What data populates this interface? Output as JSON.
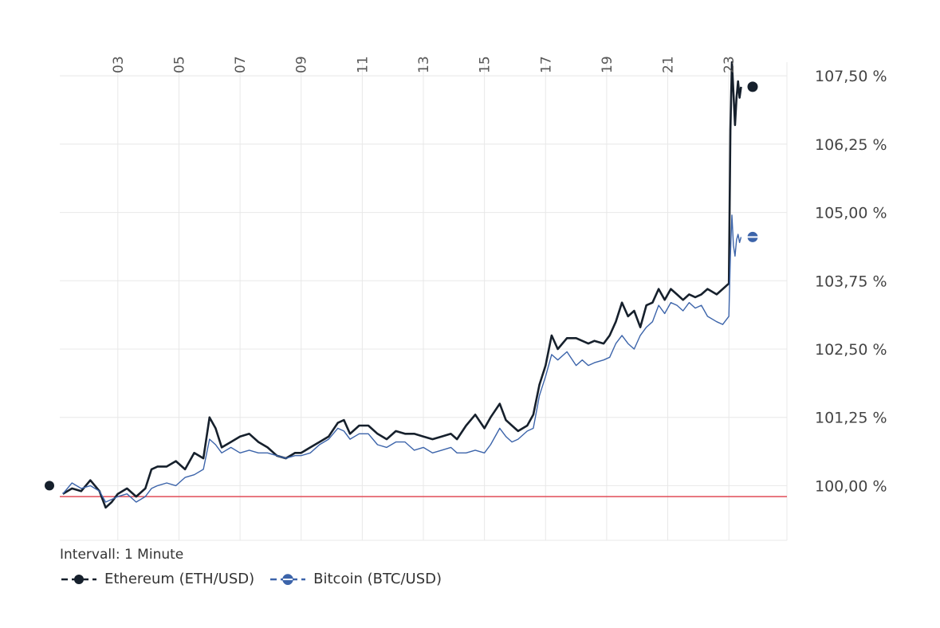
{
  "chart_data": {
    "type": "line",
    "interval_label": "Intervall: 1 Minute",
    "x_ticks": [
      "03",
      "05",
      "07",
      "09",
      "11",
      "13",
      "15",
      "17",
      "19",
      "21",
      "23"
    ],
    "x_tick_values": [
      3,
      5,
      7,
      9,
      11,
      13,
      15,
      17,
      19,
      21,
      23
    ],
    "xlim": [
      1.1,
      24.9
    ],
    "y_ticks": [
      "100,00 %",
      "101,25 %",
      "102,50 %",
      "103,75 %",
      "105,00 %",
      "106,25 %",
      "107,50 %"
    ],
    "y_tick_values": [
      100.0,
      101.25,
      102.5,
      103.75,
      105.0,
      106.25,
      107.5
    ],
    "ylim": [
      99.0,
      107.75
    ],
    "baseline": 99.8,
    "baseline_color": "#e04c58",
    "grid": true,
    "legend_position": "bottom-left",
    "series": [
      {
        "name": "Ethereum (ETH/USD)",
        "color": "#16202c",
        "marker": "filled-circle",
        "x": [
          1.2,
          1.5,
          1.8,
          2.1,
          2.4,
          2.6,
          2.8,
          3.0,
          3.3,
          3.6,
          3.9,
          4.1,
          4.3,
          4.6,
          4.9,
          5.2,
          5.5,
          5.8,
          6.0,
          6.2,
          6.4,
          6.7,
          7.0,
          7.3,
          7.6,
          7.9,
          8.2,
          8.5,
          8.8,
          9.0,
          9.3,
          9.6,
          9.9,
          10.2,
          10.4,
          10.6,
          10.9,
          11.2,
          11.5,
          11.8,
          12.1,
          12.4,
          12.7,
          13.0,
          13.3,
          13.6,
          13.9,
          14.1,
          14.4,
          14.7,
          15.0,
          15.2,
          15.5,
          15.7,
          15.9,
          16.1,
          16.4,
          16.6,
          16.8,
          17.0,
          17.2,
          17.4,
          17.7,
          18.0,
          18.2,
          18.4,
          18.6,
          18.9,
          19.1,
          19.3,
          19.5,
          19.7,
          19.9,
          20.1,
          20.3,
          20.5,
          20.7,
          20.9,
          21.1,
          21.3,
          21.5,
          21.7,
          21.9,
          22.1,
          22.3,
          22.6,
          22.8,
          23.0,
          23.05,
          23.1,
          23.15,
          23.2,
          23.25,
          23.3,
          23.35,
          23.4
        ],
        "values": [
          99.85,
          99.95,
          99.9,
          100.1,
          99.9,
          99.6,
          99.7,
          99.85,
          99.95,
          99.8,
          99.95,
          100.3,
          100.35,
          100.35,
          100.45,
          100.3,
          100.6,
          100.5,
          101.25,
          101.05,
          100.7,
          100.8,
          100.9,
          100.95,
          100.8,
          100.7,
          100.55,
          100.5,
          100.6,
          100.6,
          100.7,
          100.8,
          100.9,
          101.15,
          101.2,
          100.95,
          101.1,
          101.1,
          100.95,
          100.85,
          101.0,
          100.95,
          100.95,
          100.9,
          100.85,
          100.9,
          100.95,
          100.85,
          101.1,
          101.3,
          101.05,
          101.25,
          101.5,
          101.2,
          101.1,
          101.0,
          101.1,
          101.3,
          101.85,
          102.2,
          102.75,
          102.5,
          102.7,
          102.7,
          102.65,
          102.6,
          102.65,
          102.6,
          102.75,
          103.0,
          103.35,
          103.1,
          103.2,
          102.9,
          103.3,
          103.35,
          103.6,
          103.4,
          103.6,
          103.5,
          103.4,
          103.5,
          103.45,
          103.5,
          103.6,
          103.5,
          103.6,
          103.7,
          106.5,
          107.75,
          107.2,
          106.6,
          107.1,
          107.4,
          107.1,
          107.3
        ]
      },
      {
        "name": "Bitcoin (BTC/USD)",
        "color": "#3c64aa",
        "marker": "half-circle",
        "x": [
          1.2,
          1.5,
          1.8,
          2.1,
          2.4,
          2.6,
          2.8,
          3.0,
          3.3,
          3.6,
          3.9,
          4.1,
          4.3,
          4.6,
          4.9,
          5.2,
          5.5,
          5.8,
          6.0,
          6.2,
          6.4,
          6.7,
          7.0,
          7.3,
          7.6,
          7.9,
          8.2,
          8.5,
          8.8,
          9.0,
          9.3,
          9.6,
          9.9,
          10.2,
          10.4,
          10.6,
          10.9,
          11.2,
          11.5,
          11.8,
          12.1,
          12.4,
          12.7,
          13.0,
          13.3,
          13.6,
          13.9,
          14.1,
          14.4,
          14.7,
          15.0,
          15.2,
          15.5,
          15.7,
          15.9,
          16.1,
          16.4,
          16.6,
          16.8,
          17.0,
          17.2,
          17.4,
          17.7,
          18.0,
          18.2,
          18.4,
          18.6,
          18.9,
          19.1,
          19.3,
          19.5,
          19.7,
          19.9,
          20.1,
          20.3,
          20.5,
          20.7,
          20.9,
          21.1,
          21.3,
          21.5,
          21.7,
          21.9,
          22.1,
          22.3,
          22.6,
          22.8,
          23.0,
          23.05,
          23.1,
          23.15,
          23.2,
          23.25,
          23.3,
          23.35,
          23.4
        ],
        "values": [
          99.85,
          100.05,
          99.95,
          100.0,
          99.9,
          99.7,
          99.75,
          99.8,
          99.85,
          99.7,
          99.8,
          99.95,
          100.0,
          100.05,
          100.0,
          100.15,
          100.2,
          100.3,
          100.85,
          100.75,
          100.6,
          100.7,
          100.6,
          100.65,
          100.6,
          100.6,
          100.55,
          100.5,
          100.55,
          100.55,
          100.6,
          100.75,
          100.85,
          101.05,
          101.0,
          100.85,
          100.95,
          100.95,
          100.75,
          100.7,
          100.8,
          100.8,
          100.65,
          100.7,
          100.6,
          100.65,
          100.7,
          100.6,
          100.6,
          100.65,
          100.6,
          100.75,
          101.05,
          100.9,
          100.8,
          100.85,
          101.0,
          101.05,
          101.65,
          102.0,
          102.4,
          102.3,
          102.45,
          102.2,
          102.3,
          102.2,
          102.25,
          102.3,
          102.35,
          102.6,
          102.75,
          102.6,
          102.5,
          102.75,
          102.9,
          103.0,
          103.3,
          103.15,
          103.35,
          103.3,
          103.2,
          103.35,
          103.25,
          103.3,
          103.1,
          103.0,
          102.95,
          103.1,
          104.2,
          104.95,
          104.4,
          104.2,
          104.5,
          104.6,
          104.45,
          104.55
        ]
      }
    ]
  }
}
